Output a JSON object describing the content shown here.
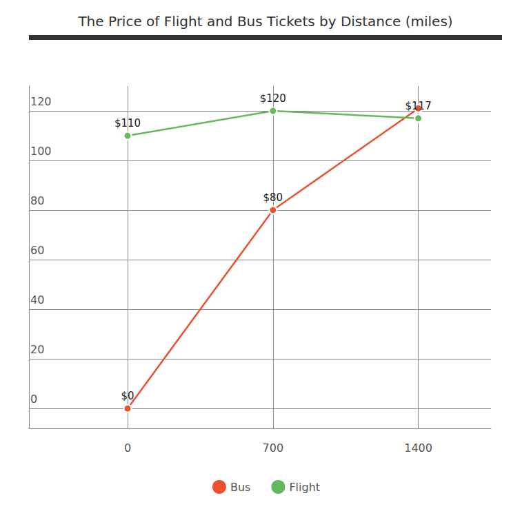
{
  "chart_data": {
    "type": "line",
    "title": "The Price of Flight and Bus Tickets by Distance (miles)",
    "x": [
      0,
      700,
      1400
    ],
    "xlim": [
      -475,
      1750
    ],
    "xticks": [
      0,
      700,
      1400
    ],
    "ylim": [
      -8,
      130
    ],
    "yticks": [
      0,
      20,
      40,
      60,
      80,
      100,
      120
    ],
    "grid": true,
    "legend": "bottom",
    "data_labels": true,
    "marker": "circle",
    "series": [
      {
        "name": "Bus",
        "color": "#e9512f",
        "values": [
          0,
          80,
          121
        ],
        "value_labels": [
          "$0",
          "$80",
          null
        ]
      },
      {
        "name": "Flight",
        "color": "#63b95b",
        "values": [
          110,
          120,
          117
        ],
        "value_labels": [
          "$110",
          "$120",
          "$117"
        ]
      }
    ]
  }
}
